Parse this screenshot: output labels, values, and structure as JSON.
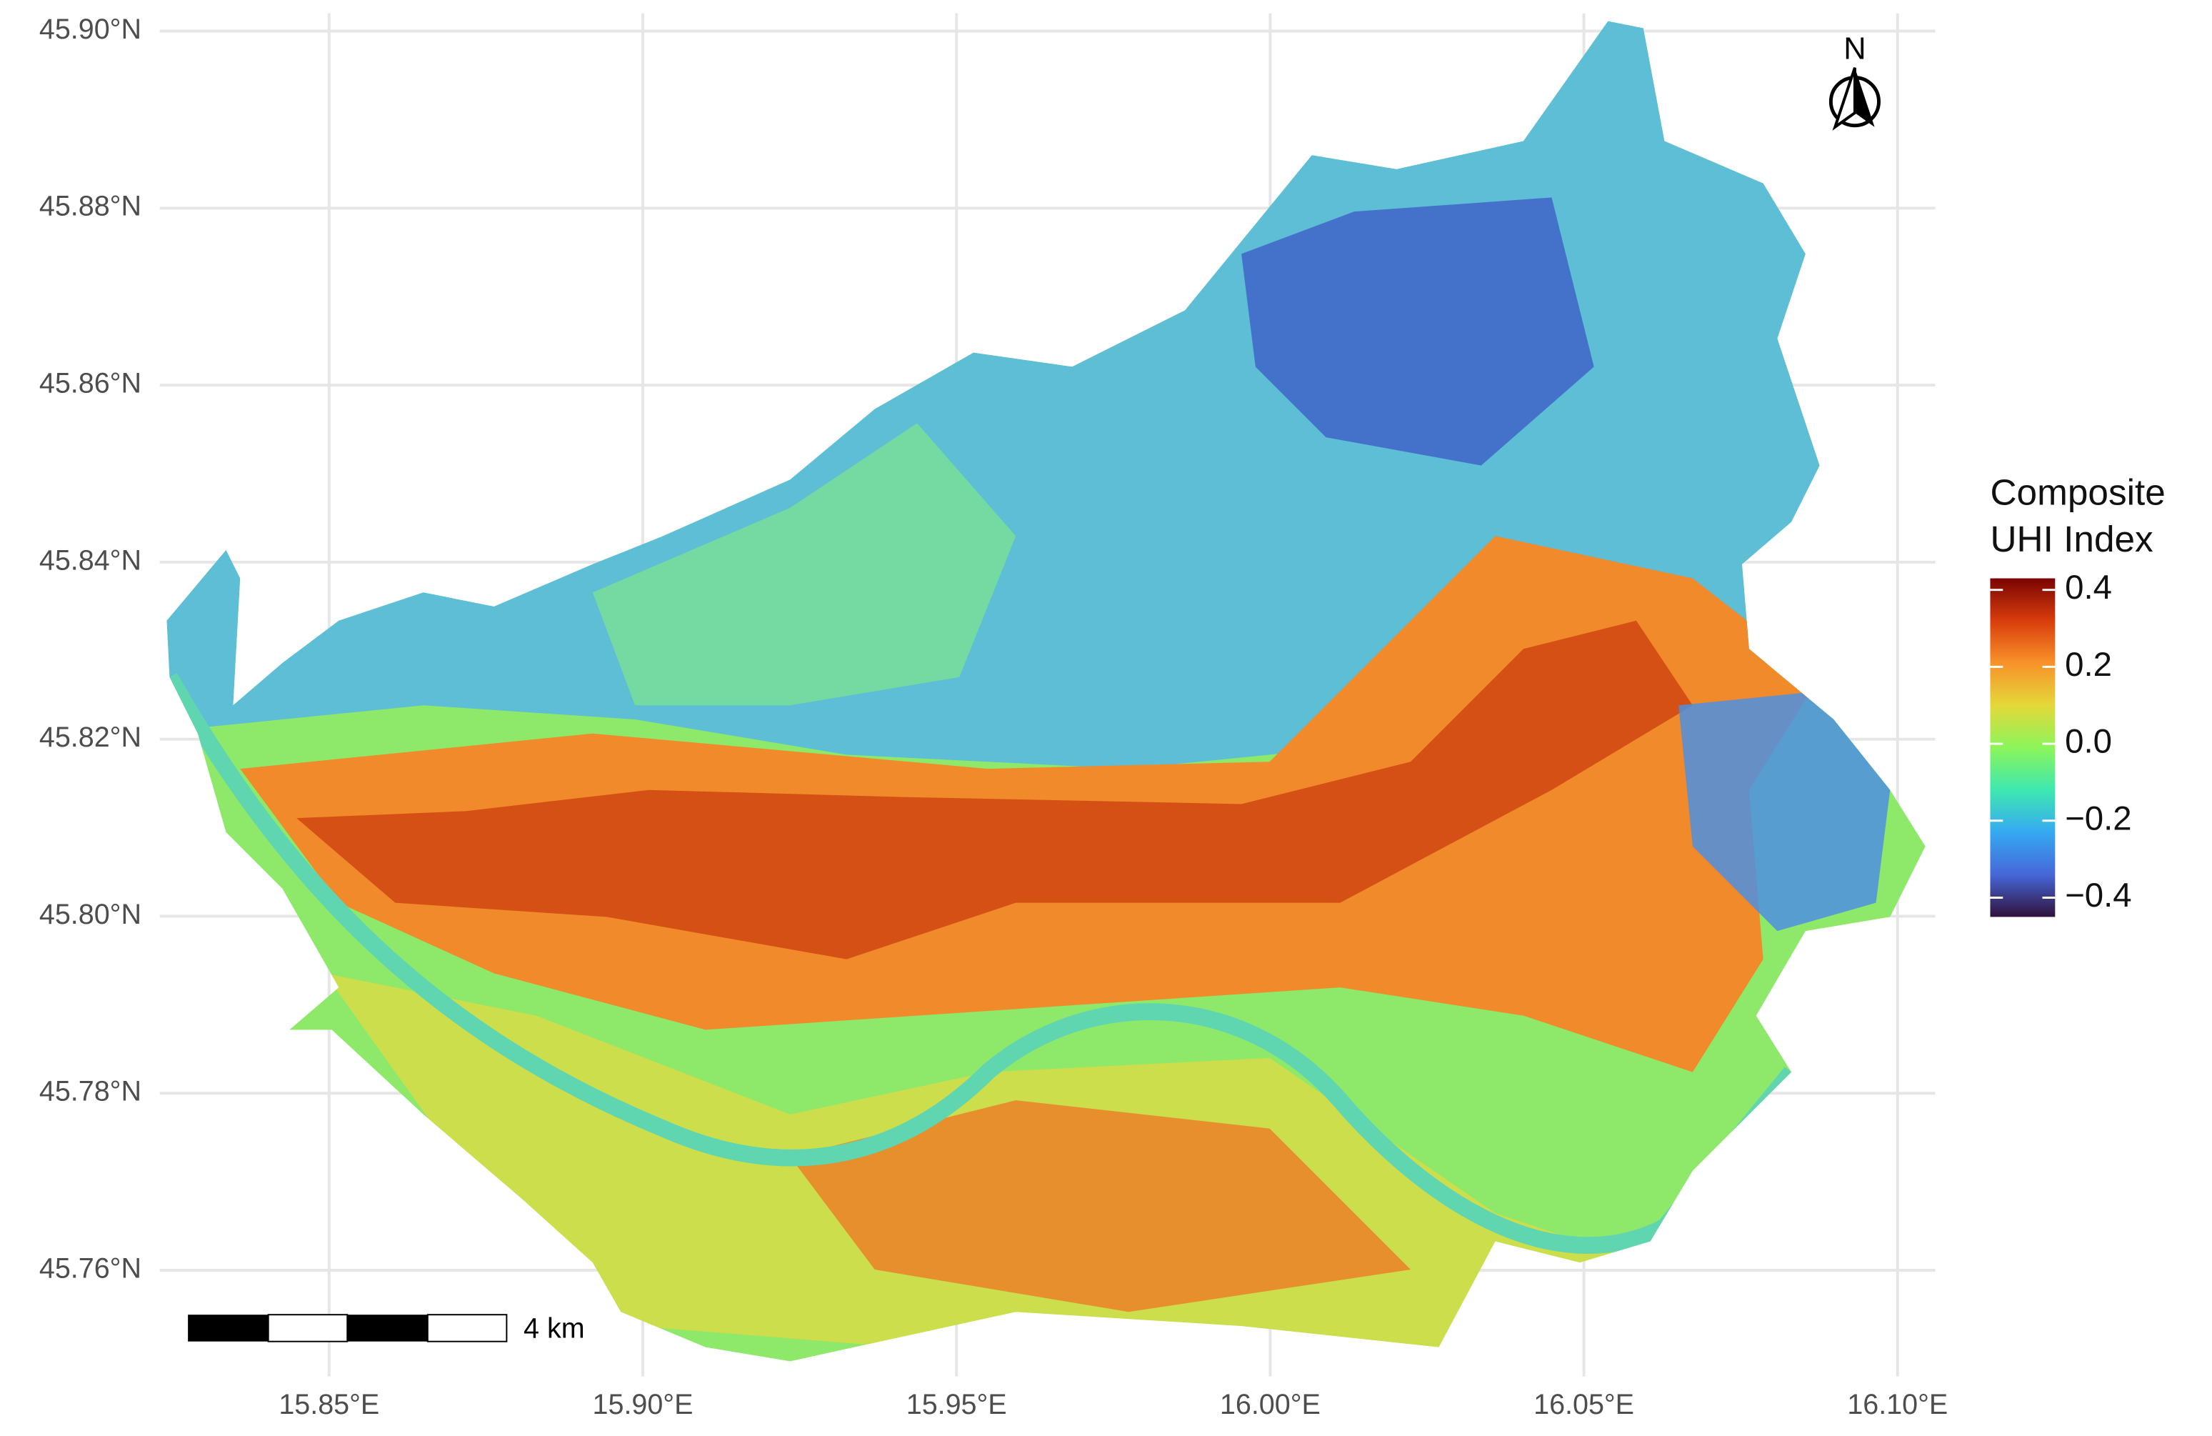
{
  "chart_data": {
    "type": "raster-map",
    "xlim": [
      15.823,
      16.106
    ],
    "ylim": [
      45.748,
      45.902
    ],
    "xticks": [
      {
        "value": 15.85,
        "label": "15.85°E"
      },
      {
        "value": 15.9,
        "label": "15.90°E"
      },
      {
        "value": 15.95,
        "label": "15.95°E"
      },
      {
        "value": 16.0,
        "label": "16.00°E"
      },
      {
        "value": 16.05,
        "label": "16.05°E"
      },
      {
        "value": 16.1,
        "label": "16.10°E"
      }
    ],
    "yticks": [
      {
        "value": 45.76,
        "label": "45.76°N"
      },
      {
        "value": 45.78,
        "label": "45.78°N"
      },
      {
        "value": 45.8,
        "label": "45.80°N"
      },
      {
        "value": 45.82,
        "label": "45.82°N"
      },
      {
        "value": 45.84,
        "label": "45.84°N"
      },
      {
        "value": 45.86,
        "label": "45.86°N"
      },
      {
        "value": 45.88,
        "label": "45.88°N"
      },
      {
        "value": 45.9,
        "label": "45.90°N"
      }
    ],
    "grid": true,
    "legend_title": [
      "Composite",
      "UHI Index"
    ],
    "clim": [
      -0.45,
      0.43
    ],
    "cticks": [
      {
        "value": 0.4,
        "label": "0.4"
      },
      {
        "value": 0.2,
        "label": "0.2"
      },
      {
        "value": 0,
        "label": "0.0"
      },
      {
        "value": -0.2,
        "label": "−0.2"
      },
      {
        "value": -0.4,
        "label": "−0.4"
      }
    ],
    "colormap": [
      "#30123b",
      "#4667d8",
      "#36a9f2",
      "#3ee8b0",
      "#8cf55a",
      "#e4d83a",
      "#f8922a",
      "#d83d0c",
      "#7a0403"
    ],
    "scale_bar_label": "4 km",
    "north_label": "N"
  }
}
